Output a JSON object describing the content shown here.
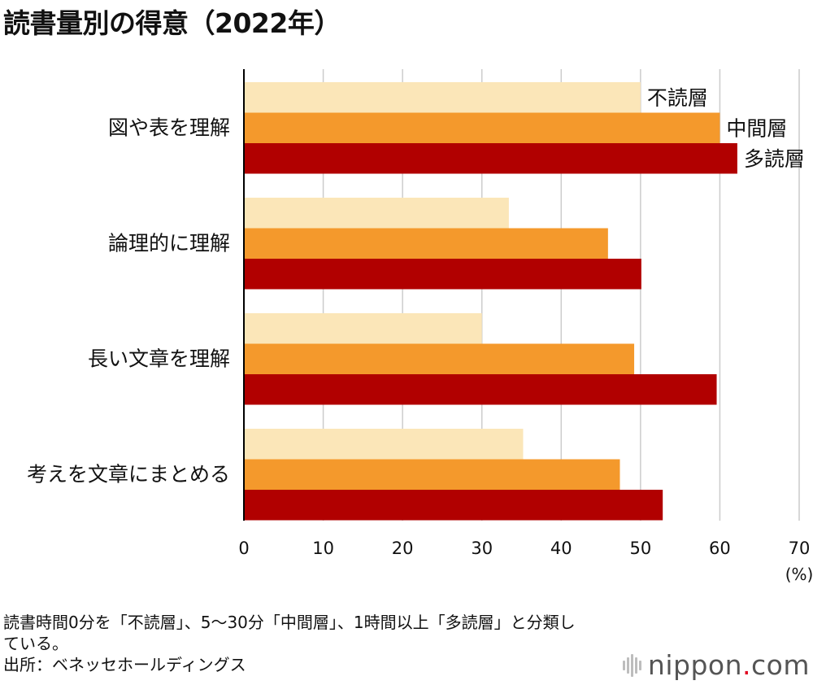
{
  "title": "読書量別の得意（2022年）",
  "chart_data": {
    "type": "bar",
    "orientation": "horizontal",
    "title": "読書量別の得意（2022年）",
    "categories": [
      "図や表を理解",
      "論理的に理解",
      "長い文章を理解",
      "考えを文章にまとめる"
    ],
    "series": [
      {
        "name": "不読層",
        "color": "#fbe6b8",
        "values": [
          50.0,
          33.4,
          30.0,
          35.2
        ]
      },
      {
        "name": "中間層",
        "color": "#f4992c",
        "values": [
          60.0,
          45.9,
          49.2,
          47.4
        ]
      },
      {
        "name": "多読層",
        "color": "#b10000",
        "values": [
          62.2,
          50.1,
          59.6,
          52.8
        ]
      }
    ],
    "xlim": [
      0,
      70
    ],
    "xticks": [
      "0",
      "10",
      "20",
      "30",
      "40",
      "50",
      "60",
      "70"
    ],
    "xunit": "(%)",
    "grid": true,
    "legend": "inline labels on first category"
  },
  "notes": {
    "line1": "読書時間0分を「不読層」、5～30分「中間層」、1時間以上「多読層」と分類し",
    "line2": "ている。",
    "source": "出所：ベネッセホールディングス"
  },
  "logo": {
    "brand": "nippon",
    "dot": ".",
    "tld": "com",
    "icon": "nippon-logo-bars-icon"
  }
}
